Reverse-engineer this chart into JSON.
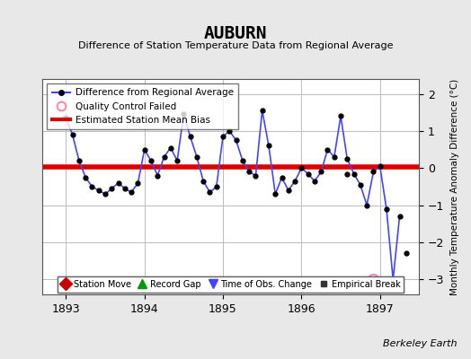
{
  "title": "AUBURN",
  "subtitle": "Difference of Station Temperature Data from Regional Average",
  "ylabel": "Monthly Temperature Anomaly Difference (°C)",
  "credit": "Berkeley Earth",
  "bias_value": 0.03,
  "ylim": [
    -3.4,
    2.4
  ],
  "xlim": [
    1892.7,
    1897.5
  ],
  "xticks": [
    1893,
    1894,
    1895,
    1896,
    1897
  ],
  "yticks": [
    -3,
    -2,
    -1,
    0,
    1,
    2
  ],
  "background_color": "#e8e8e8",
  "plot_bg_color": "#ffffff",
  "line_color": "#4444ff",
  "bias_color": "#dd0000",
  "qc_color": "#ff88aa",
  "times": [
    1893.0,
    1893.083,
    1893.167,
    1893.25,
    1893.333,
    1893.417,
    1893.5,
    1893.583,
    1893.667,
    1893.75,
    1893.833,
    1893.917,
    1894.0,
    1894.083,
    1894.167,
    1894.25,
    1894.333,
    1894.417,
    1894.5,
    1894.583,
    1894.667,
    1894.75,
    1894.833,
    1894.917,
    1895.0,
    1895.083,
    1895.167,
    1895.25,
    1895.333,
    1895.417,
    1895.5,
    1895.583,
    1895.667,
    1895.75,
    1895.833,
    1895.917,
    1896.0,
    1896.083,
    1896.167,
    1896.25,
    1896.333,
    1896.417,
    1896.5,
    1896.583,
    1896.667,
    1896.75,
    1896.833,
    1896.917,
    1897.0,
    1897.083,
    1897.167,
    1897.25
  ],
  "values": [
    1.35,
    0.9,
    0.2,
    -0.25,
    -0.5,
    -0.6,
    -0.7,
    -0.55,
    -0.4,
    -0.55,
    -0.65,
    -0.4,
    0.5,
    0.2,
    -0.2,
    0.3,
    0.55,
    0.2,
    1.45,
    0.85,
    0.3,
    -0.35,
    -0.65,
    -0.5,
    0.85,
    1.0,
    0.75,
    0.2,
    -0.1,
    -0.2,
    1.55,
    0.6,
    -0.7,
    -0.25,
    -0.6,
    -0.35,
    0.0,
    -0.15,
    -0.35,
    -0.1,
    0.5,
    0.3,
    1.4,
    0.25,
    -0.15,
    -0.45,
    -1.0,
    -0.1,
    0.05,
    -1.1,
    -3.0,
    -1.3
  ],
  "isolated_points": [
    [
      1896.583,
      -0.15
    ],
    [
      1897.333,
      -2.3
    ]
  ],
  "qc_point": [
    1896.917,
    -3.0
  ],
  "legend1_items": [
    {
      "label": "Difference from Regional Average",
      "color": "#4444ff",
      "lw": 1.5,
      "marker": "o",
      "ms": 4
    },
    {
      "label": "Quality Control Failed",
      "color": "#ff88aa",
      "marker": "o",
      "ms": 7,
      "lw": 0
    },
    {
      "label": "Estimated Station Mean Bias",
      "color": "#dd0000",
      "lw": 3
    }
  ],
  "legend2_items": [
    {
      "label": "Station Move",
      "color": "#cc0000",
      "marker": "D",
      "ms": 7
    },
    {
      "label": "Record Gap",
      "color": "#009900",
      "marker": "^",
      "ms": 7
    },
    {
      "label": "Time of Obs. Change",
      "color": "#4444ff",
      "marker": "v",
      "ms": 7
    },
    {
      "label": "Empirical Break",
      "color": "#333333",
      "marker": "s",
      "ms": 5
    }
  ]
}
